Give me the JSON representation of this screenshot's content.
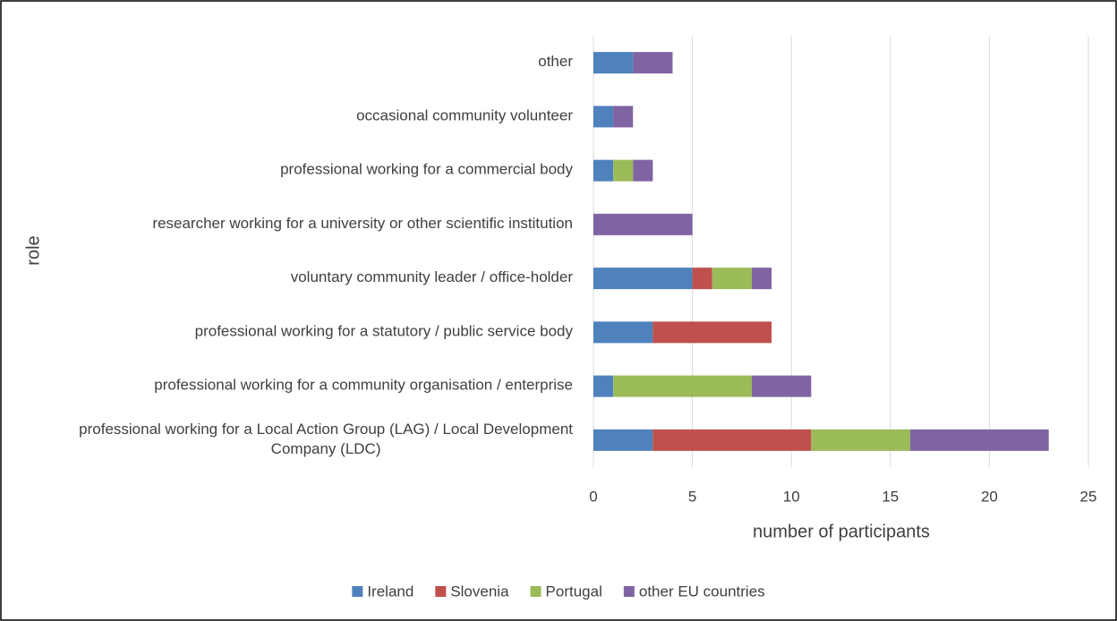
{
  "chart_data": {
    "type": "stacked-bar-horizontal",
    "x_label": "number of participants",
    "y_label": "role",
    "categories": [
      "professional working for a Local Action Group (LAG) / Local Development Company (LDC)",
      "professional working for a community organisation / enterprise",
      "professional working for a statutory / public service body",
      "voluntary community leader / office-holder",
      "researcher working for a university or other scientific institution",
      "professional working for a commercial body",
      "occasional community volunteer",
      "other"
    ],
    "series": [
      {
        "name": "Ireland",
        "color": "#4f81bd",
        "values": [
          3,
          1,
          3,
          5,
          0,
          1,
          1,
          2
        ]
      },
      {
        "name": "Slovenia",
        "color": "#c0504d",
        "values": [
          8,
          0,
          6,
          1,
          0,
          0,
          0,
          0
        ]
      },
      {
        "name": "Portugal",
        "color": "#9bbb59",
        "values": [
          5,
          7,
          0,
          2,
          0,
          1,
          0,
          0
        ]
      },
      {
        "name": "other EU countries",
        "color": "#8064a2",
        "values": [
          7,
          3,
          0,
          1,
          5,
          1,
          1,
          2
        ]
      }
    ],
    "xlim": [
      0,
      25
    ],
    "xticks": [
      0,
      5,
      10,
      15,
      20,
      25
    ],
    "grid": true,
    "legend": "bottom"
  }
}
